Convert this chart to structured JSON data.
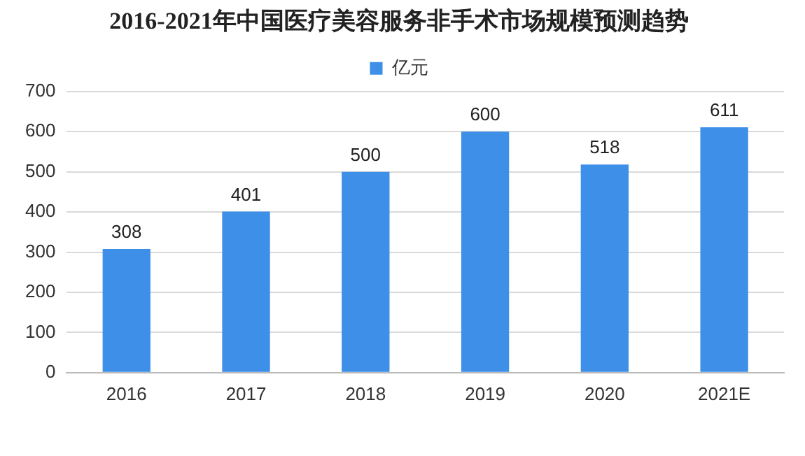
{
  "chart_data": {
    "type": "bar",
    "title": "2016-2021年中国医疗美容服务非手术市场规模预测趋势",
    "categories": [
      "2016",
      "2017",
      "2018",
      "2019",
      "2020",
      "2021E"
    ],
    "series": [
      {
        "name": "亿元",
        "color": "#3d8fe8",
        "values": [
          308,
          401,
          500,
          600,
          518,
          611
        ]
      }
    ],
    "ylim": [
      0,
      700
    ],
    "yticks": [
      0,
      100,
      200,
      300,
      400,
      500,
      600,
      700
    ],
    "grid": "y",
    "legend": "top",
    "data_labels": true
  }
}
